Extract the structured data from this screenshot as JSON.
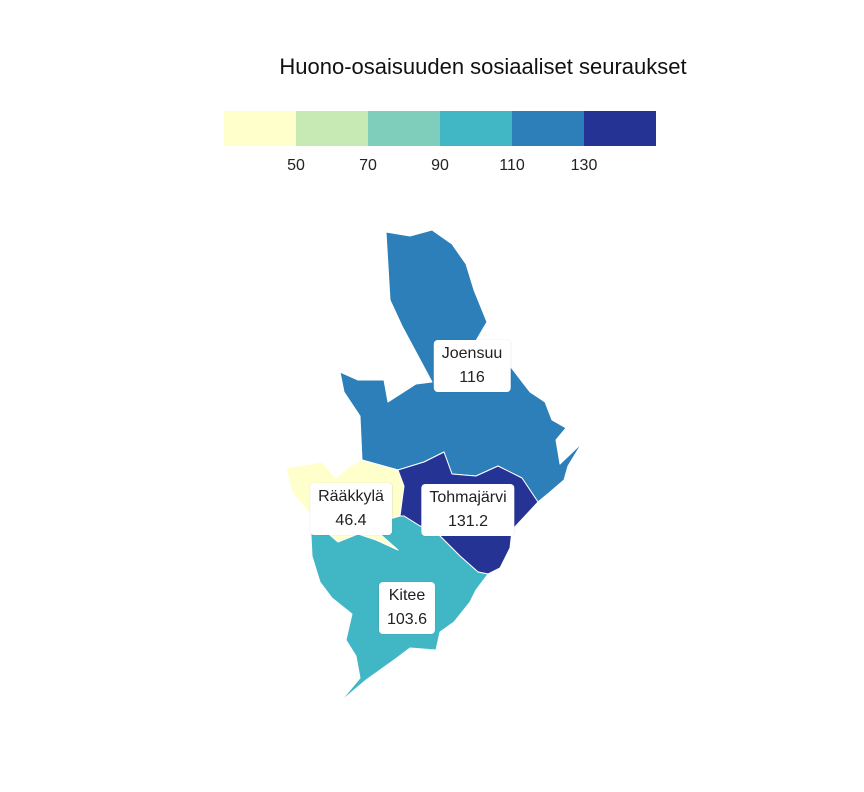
{
  "title": "Huono-osaisuuden sosiaaliset seuraukset",
  "legend": {
    "ticks": [
      "50",
      "70",
      "90",
      "110",
      "130"
    ],
    "colors": [
      "#ffffcc",
      "#c7e9b4",
      "#7fcdbb",
      "#41b6c4",
      "#2c7fb8",
      "#253494"
    ]
  },
  "regions": [
    {
      "name": "Joensuu",
      "value": "116",
      "color": "#2c7fb8"
    },
    {
      "name": "Rääkkylä",
      "value": "46.4",
      "color": "#ffffcc"
    },
    {
      "name": "Tohmajärvi",
      "value": "131.2",
      "color": "#253494"
    },
    {
      "name": "Kitee",
      "value": "103.6",
      "color": "#41b6c4"
    }
  ]
}
